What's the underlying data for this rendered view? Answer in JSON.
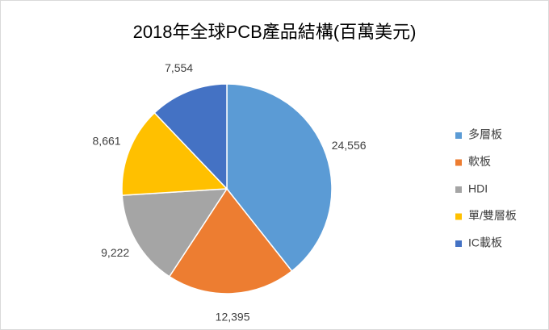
{
  "chart_data": {
    "type": "pie",
    "title": "2018年全球PCB產品結構(百萬美元)",
    "categories": [
      "多層板",
      "軟板",
      "HDI",
      "單/雙層板",
      "IC載板"
    ],
    "values": [
      24556,
      12395,
      9222,
      8661,
      7554
    ],
    "value_labels": [
      "24,556",
      "12,395",
      "9,222",
      "8,661",
      "7,554"
    ],
    "colors": [
      "#5b9bd5",
      "#ed7d31",
      "#a5a5a5",
      "#ffc000",
      "#4472c4"
    ],
    "legend": "right"
  }
}
